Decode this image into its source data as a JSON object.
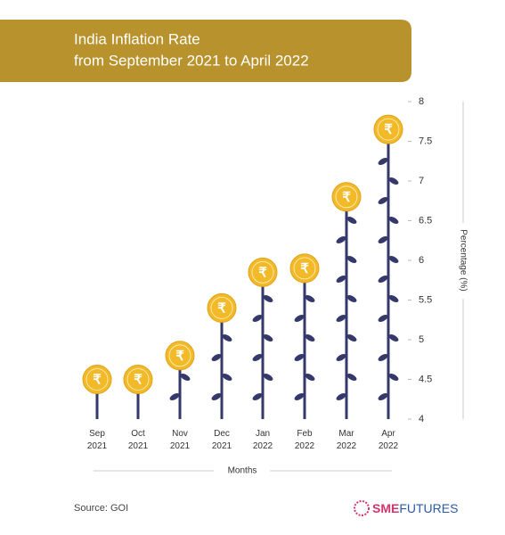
{
  "chart_data": {
    "type": "coin-stem",
    "title": [
      "India Inflation Rate",
      "from September 2021 to April 2022"
    ],
    "categories": [
      "Sep 2021",
      "Oct 2021",
      "Nov 2021",
      "Dec 2021",
      "Jan 2022",
      "Feb 2022",
      "Mar 2022",
      "Apr 2022"
    ],
    "values": [
      4.5,
      4.5,
      4.8,
      5.4,
      5.85,
      5.9,
      6.8,
      7.65
    ],
    "ylim": [
      4,
      8
    ],
    "yticks": [
      4,
      4.5,
      5,
      5.5,
      6,
      6.5,
      7,
      7.5,
      8
    ],
    "x_label": "Months",
    "y_label": "Percentage (%)",
    "coin_symbol": "₹",
    "stem_color": "#34386a",
    "coin_color": "#f2b928",
    "banner_color": "#b8922c",
    "source": "Source: GOI",
    "brand": [
      "SME",
      "FUTURES"
    ]
  }
}
